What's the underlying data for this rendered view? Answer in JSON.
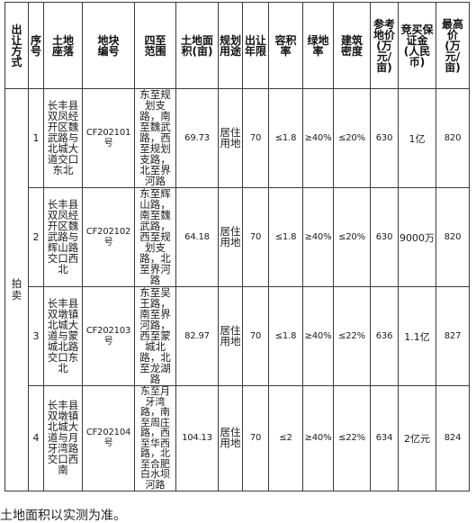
{
  "headers": {
    "transfer_method": "出让方式",
    "seq": "序号",
    "location": "土地座落",
    "parcel_no": "地块编号",
    "boundary": "四至范围",
    "area": "土地面积(亩)",
    "use": "规划用途",
    "term": "出让年限",
    "far": "容积率",
    "green": "绿地率",
    "density": "建筑密度",
    "ref_price": "参考地价(万元/亩)",
    "deposit": "竞买保证金(人民币)",
    "max_price": "最高价(万元/亩)"
  },
  "transfer_method": "拍卖",
  "rows": [
    {
      "seq": "1",
      "location": "长丰县双凤经开区魏武路与北城大道交口东北",
      "parcel_no": "CF202101号",
      "boundary": "东至规划支路，南至魏武路，西至规划支路，北至界河路",
      "area": "69.73",
      "use": "居住用地",
      "term": "70",
      "far": "≤1.8",
      "green": "≥40%",
      "density": "≤20%",
      "ref_price": "630",
      "deposit": "1亿",
      "max_price": "820"
    },
    {
      "seq": "2",
      "location": "长丰县双凤经开区魏武路与辉山路交口西北",
      "parcel_no": "CF202102号",
      "boundary": "东至辉山路，南至魏武路，西至规划支路，北至界河路",
      "area": "64.18",
      "use": "居住用地",
      "term": "70",
      "far": "≤1.8",
      "green": "≥40%",
      "density": "≤20%",
      "ref_price": "630",
      "deposit": "9000万",
      "max_price": "820"
    },
    {
      "seq": "3",
      "location": "长丰县双墩镇北城大道与蒙城北路交口东北",
      "parcel_no": "CF202103号",
      "boundary": "东至吴王路，南至界河路，西至蒙城北路，北至龙湖路",
      "area": "82.97",
      "use": "居住用地",
      "term": "70",
      "far": "≤1.8",
      "green": "≥40%",
      "density": "≤22%",
      "ref_price": "636",
      "deposit": "1.1亿",
      "max_price": "827"
    },
    {
      "seq": "4",
      "location": "长丰县双墩镇北城大道与月牙湾路交口西南",
      "parcel_no": "CF202104号",
      "boundary": "东至月牙湾路，南至周庄路，西至华西路，北至合肥白水坝河路",
      "area": "104.13",
      "use": "居住用地",
      "term": "70",
      "far": "≤2",
      "green": "≥40%",
      "density": "≤22%",
      "ref_price": "634",
      "deposit": "2亿元",
      "max_price": "824"
    }
  ],
  "footer": "土地面积以实测为准。"
}
